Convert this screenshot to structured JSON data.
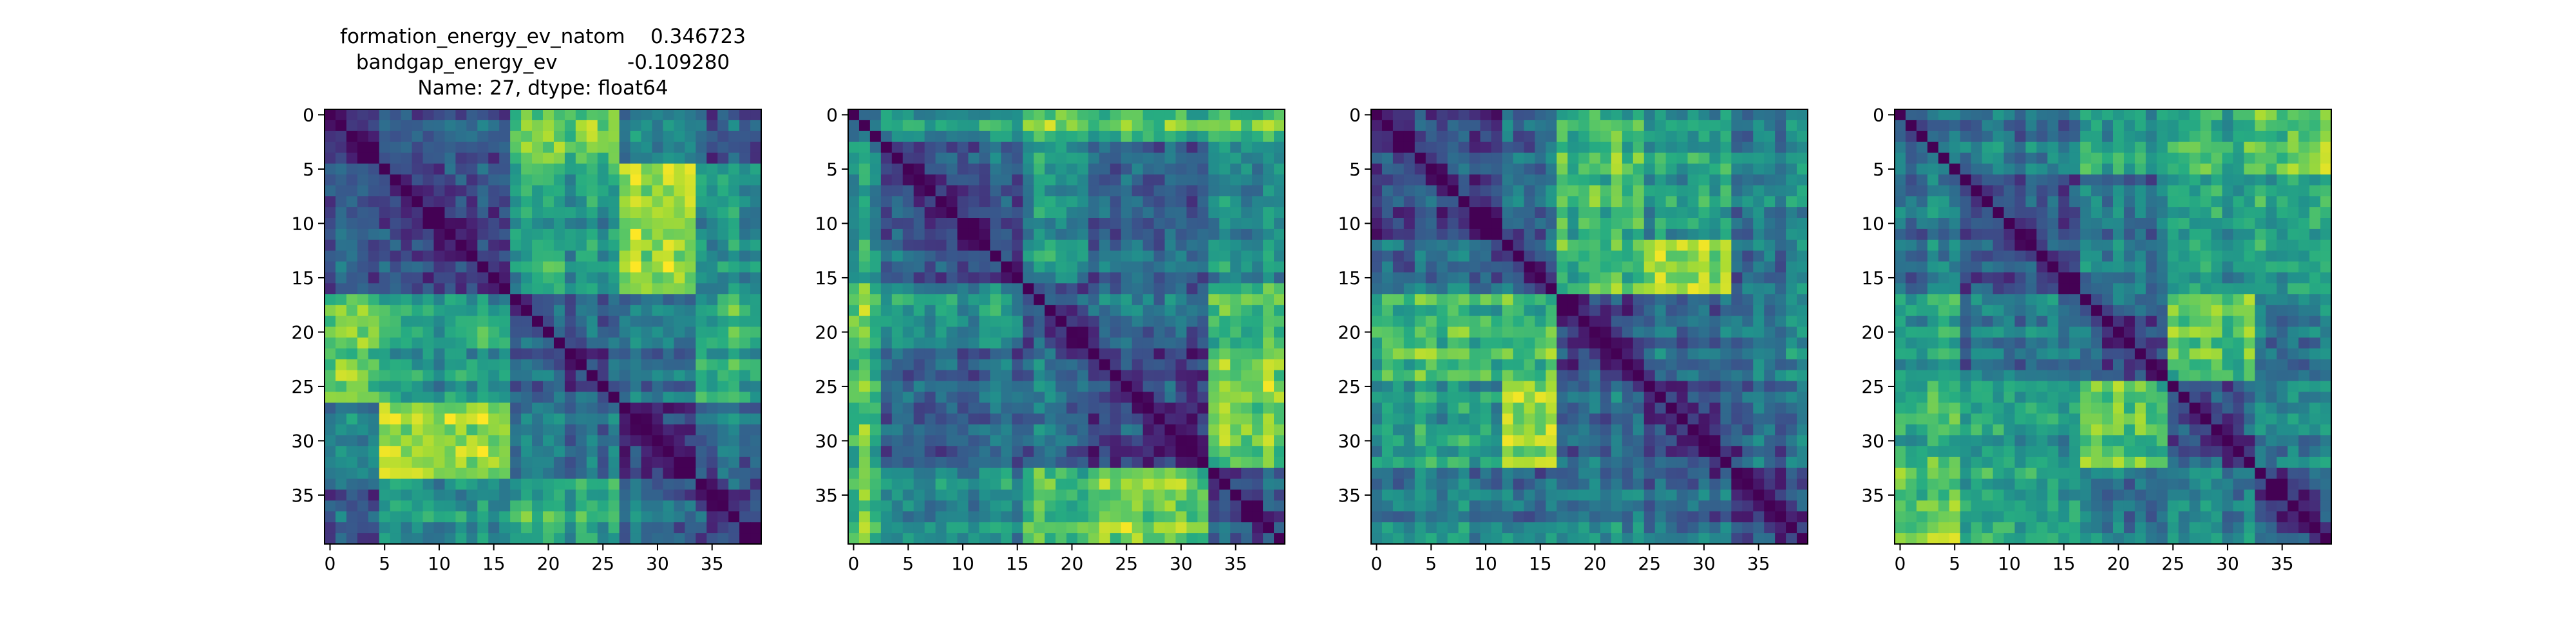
{
  "figure": {
    "title_lines": [
      "formation_energy_ev_natom    0.346723",
      "bandgap_energy_ev           -0.109280",
      "Name: 27, dtype: float64"
    ],
    "colormap": "viridis",
    "colormap_stops": [
      "#440154",
      "#3b528b",
      "#21918c",
      "#5ec962",
      "#fde725"
    ]
  },
  "chart_data": [
    {
      "type": "heatmap",
      "title": "formation_energy_ev_natom    0.346723\nbandgap_energy_ev           -0.109280\nName: 27, dtype: float64",
      "size": 40,
      "xticks": [
        0,
        5,
        10,
        15,
        20,
        25,
        30,
        35
      ],
      "yticks": [
        0,
        5,
        10,
        15,
        20,
        25,
        30,
        35
      ],
      "diagonal": 0,
      "value_range": [
        0,
        1
      ],
      "blocks": [
        0,
        5,
        17,
        27,
        34,
        40
      ],
      "block_means": [
        [
          0.25,
          0.3,
          0.75,
          0.45,
          0.3
        ],
        [
          0.3,
          0.22,
          0.55,
          0.85,
          0.5
        ],
        [
          0.75,
          0.55,
          0.28,
          0.4,
          0.6
        ],
        [
          0.45,
          0.85,
          0.4,
          0.2,
          0.35
        ],
        [
          0.3,
          0.5,
          0.6,
          0.35,
          0.25
        ]
      ]
    },
    {
      "type": "heatmap",
      "title": "",
      "size": 40,
      "xticks": [
        0,
        5,
        10,
        15,
        20,
        25,
        30,
        35
      ],
      "yticks": [
        0,
        5,
        10,
        15,
        20,
        25,
        30,
        35
      ],
      "diagonal": 0,
      "value_range": [
        0,
        1
      ],
      "blocks": [
        0,
        3,
        16,
        22,
        33,
        40
      ],
      "block_means": [
        [
          0.45,
          0.55,
          0.8,
          0.7,
          0.75
        ],
        [
          0.55,
          0.3,
          0.55,
          0.35,
          0.5
        ],
        [
          0.8,
          0.55,
          0.35,
          0.4,
          0.7
        ],
        [
          0.7,
          0.35,
          0.4,
          0.25,
          0.8
        ],
        [
          0.75,
          0.5,
          0.7,
          0.8,
          0.3
        ]
      ]
    },
    {
      "type": "heatmap",
      "title": "",
      "size": 40,
      "xticks": [
        0,
        5,
        10,
        15,
        20,
        25,
        30,
        35
      ],
      "yticks": [
        0,
        5,
        10,
        15,
        20,
        25,
        30,
        35
      ],
      "diagonal": 0,
      "value_range": [
        0,
        1
      ],
      "blocks": [
        0,
        12,
        17,
        25,
        33,
        40
      ],
      "block_means": [
        [
          0.25,
          0.35,
          0.7,
          0.55,
          0.45
        ],
        [
          0.35,
          0.3,
          0.7,
          0.85,
          0.4
        ],
        [
          0.7,
          0.7,
          0.25,
          0.35,
          0.45
        ],
        [
          0.55,
          0.85,
          0.35,
          0.22,
          0.35
        ],
        [
          0.45,
          0.4,
          0.45,
          0.35,
          0.25
        ]
      ]
    },
    {
      "type": "heatmap",
      "title": "",
      "size": 40,
      "xticks": [
        0,
        5,
        10,
        15,
        20,
        25,
        30,
        35
      ],
      "yticks": [
        0,
        5,
        10,
        15,
        20,
        25,
        30,
        35
      ],
      "diagonal": 0,
      "value_range": [
        0,
        1
      ],
      "blocks": [
        0,
        6,
        17,
        25,
        33,
        40
      ],
      "block_means": [
        [
          0.4,
          0.4,
          0.55,
          0.6,
          0.75
        ],
        [
          0.4,
          0.28,
          0.4,
          0.55,
          0.6
        ],
        [
          0.55,
          0.4,
          0.3,
          0.7,
          0.4
        ],
        [
          0.6,
          0.55,
          0.7,
          0.25,
          0.45
        ],
        [
          0.75,
          0.6,
          0.4,
          0.45,
          0.28
        ]
      ]
    }
  ]
}
